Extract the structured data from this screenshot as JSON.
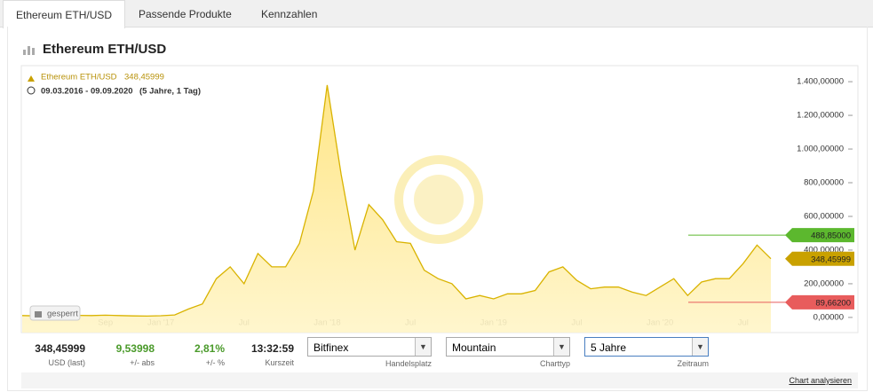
{
  "tabs": [
    "Ethereum ETH/USD",
    "Passende Produkte",
    "Kennzahlen"
  ],
  "panel_title": "Ethereum ETH/USD",
  "chart_data": {
    "type": "area",
    "last_label": "348,45999",
    "date_range": "09.03.2016 - 09.09.2020",
    "period_note": "(5 Jahre, 1 Tag)",
    "locked_label": "gesperrt",
    "categories": [
      null,
      null,
      null,
      null,
      null,
      null,
      "Sep",
      null,
      null,
      null,
      "Jan '17",
      null,
      null,
      null,
      null,
      null,
      "Jul",
      null,
      null,
      null,
      null,
      null,
      "Jan '18",
      null,
      null,
      null,
      null,
      null,
      "Jul",
      null,
      null,
      null,
      null,
      null,
      "Jan '19",
      null,
      null,
      null,
      null,
      null,
      "Jul",
      null,
      null,
      null,
      null,
      null,
      "Jan '20",
      null,
      null,
      null,
      null,
      null,
      "Jul",
      null,
      null
    ],
    "series": [
      {
        "name": "Ethereum ETH/USD",
        "color": "#d9b300",
        "values": [
          11,
          9,
          12,
          13,
          12,
          11,
          13,
          11,
          9,
          8,
          10,
          15,
          50,
          80,
          230,
          300,
          200,
          380,
          300,
          300,
          440,
          750,
          1380,
          850,
          400,
          670,
          580,
          450,
          440,
          280,
          230,
          200,
          110,
          130,
          110,
          140,
          140,
          160,
          270,
          300,
          220,
          170,
          180,
          180,
          150,
          130,
          180,
          230,
          130,
          210,
          230,
          230,
          320,
          430,
          348.45999
        ]
      }
    ],
    "ylim": [
      -90,
      1490
    ],
    "yticks": [
      {
        "value": 0,
        "label": "0,00000"
      },
      {
        "value": 200,
        "label": "200,00000"
      },
      {
        "value": 400,
        "label": "400,00000"
      },
      {
        "value": 600,
        "label": "600,00000"
      },
      {
        "value": 800,
        "label": "800,00000"
      },
      {
        "value": 1000,
        "label": "1.000,00000"
      },
      {
        "value": 1200,
        "label": "1.200,00000"
      },
      {
        "value": 1400,
        "label": "1.400,00000"
      }
    ],
    "grid": false,
    "markers": [
      {
        "value": 488.85,
        "label": "488,85000",
        "color": "#5cb82e",
        "line": true
      },
      {
        "value": 348.45999,
        "label": "348,45999",
        "color": "#c9a100",
        "line": false
      },
      {
        "value": 89.662,
        "label": "89,66200",
        "color": "#e85c5c",
        "line": true
      }
    ]
  },
  "stats": [
    {
      "value": "348,45999",
      "label": "USD (last)"
    },
    {
      "value": "9,53998",
      "label": "+/- abs"
    },
    {
      "value": "2,81%",
      "label": "+/- %"
    },
    {
      "value": "13:32:59",
      "label": "Kurszeit"
    }
  ],
  "selects": [
    {
      "value": "Bitfinex",
      "label": "Handelsplatz"
    },
    {
      "value": "Mountain",
      "label": "Charttyp"
    },
    {
      "value": "5 Jahre",
      "label": "Zeitraum"
    }
  ],
  "footer_link": "Chart analysieren"
}
